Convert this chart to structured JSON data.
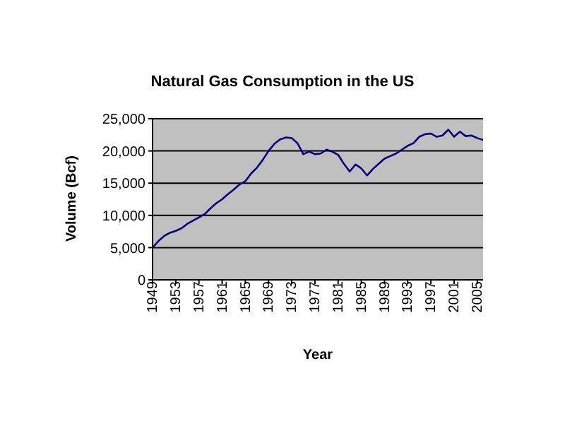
{
  "chart_data": {
    "type": "line",
    "title": "Natural Gas Consumption in the US",
    "xlabel": "Year",
    "ylabel": "Volume (Bcf)",
    "x": [
      1949,
      1950,
      1951,
      1952,
      1953,
      1954,
      1955,
      1956,
      1957,
      1958,
      1959,
      1960,
      1961,
      1962,
      1963,
      1964,
      1965,
      1966,
      1967,
      1968,
      1969,
      1970,
      1971,
      1972,
      1973,
      1974,
      1975,
      1976,
      1977,
      1978,
      1979,
      1980,
      1981,
      1982,
      1983,
      1984,
      1985,
      1986,
      1987,
      1988,
      1989,
      1990,
      1991,
      1992,
      1993,
      1994,
      1995,
      1996,
      1997,
      1998,
      1999,
      2000,
      2001,
      2002,
      2003,
      2004,
      2005,
      2006
    ],
    "series": [
      {
        "color": "#000080",
        "values": [
          5000,
          6000,
          6800,
          7300,
          7600,
          8000,
          8700,
          9200,
          9700,
          10200,
          11100,
          11900,
          12500,
          13300,
          14000,
          14800,
          15300,
          16500,
          17400,
          18600,
          20000,
          21100,
          21800,
          22100,
          22000,
          21200,
          19500,
          19900,
          19500,
          19600,
          20200,
          19900,
          19400,
          18000,
          16800,
          17900,
          17300,
          16200,
          17200,
          18000,
          18800,
          19200,
          19600,
          20200,
          20800,
          21200,
          22200,
          22600,
          22700,
          22200,
          22400,
          23300,
          22200,
          23000,
          22300,
          22400,
          22000,
          21700
        ]
      }
    ],
    "xlim": [
      1949,
      2006
    ],
    "xticks": [
      1949,
      1953,
      1957,
      1961,
      1965,
      1969,
      1973,
      1977,
      1981,
      1985,
      1989,
      1993,
      1997,
      2001,
      2005
    ],
    "ylim": [
      0,
      25000
    ],
    "yticks": [
      0,
      {
        "value": 5000,
        "label": "5,000"
      },
      {
        "value": 10000,
        "label": "10,000"
      },
      {
        "value": 15000,
        "label": "15,000"
      },
      {
        "value": 20000,
        "label": "20,000"
      },
      {
        "value": 25000,
        "label": "25,000"
      }
    ],
    "grid": "y",
    "legend": false,
    "marker": "none",
    "line_style": "solid"
  }
}
